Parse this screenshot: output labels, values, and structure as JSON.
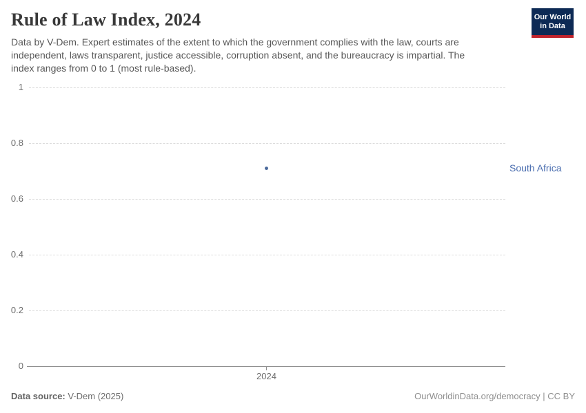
{
  "header": {
    "title": "Rule of Law Index, 2024",
    "subtitle_lines": [
      "Data by V-Dem. Expert estimates of the extent to which the government complies with the law, courts are",
      "independent, laws transparent, justice accessible, corruption absent, and the bureaucracy is impartial. The",
      "index ranges from 0 to 1 (most rule-based)."
    ],
    "logo": {
      "line1": "Our World",
      "line2": "in Data",
      "bg_color": "#0d2a55",
      "bar_color": "#c0232c"
    }
  },
  "chart_data": {
    "type": "line",
    "title": "Rule of Law Index, 2024",
    "x": [
      2024
    ],
    "series": [
      {
        "name": "South Africa",
        "values": [
          0.71
        ],
        "color": "#4c6a9c",
        "label_color": "#4a6daf"
      }
    ],
    "ylim": [
      0,
      1
    ],
    "yticks": [
      "1",
      "0.8",
      "0.6",
      "0.4",
      "0.2",
      "0"
    ],
    "xticks": [
      "2024"
    ],
    "grid": "horizontal-dashed",
    "legend_position": "right-entity-label",
    "entity_label": "South Africa"
  },
  "footer": {
    "source_label": "Data source:",
    "source_value": " V-Dem (2025)",
    "right_text": "OurWorldinData.org/democracy | CC BY"
  }
}
